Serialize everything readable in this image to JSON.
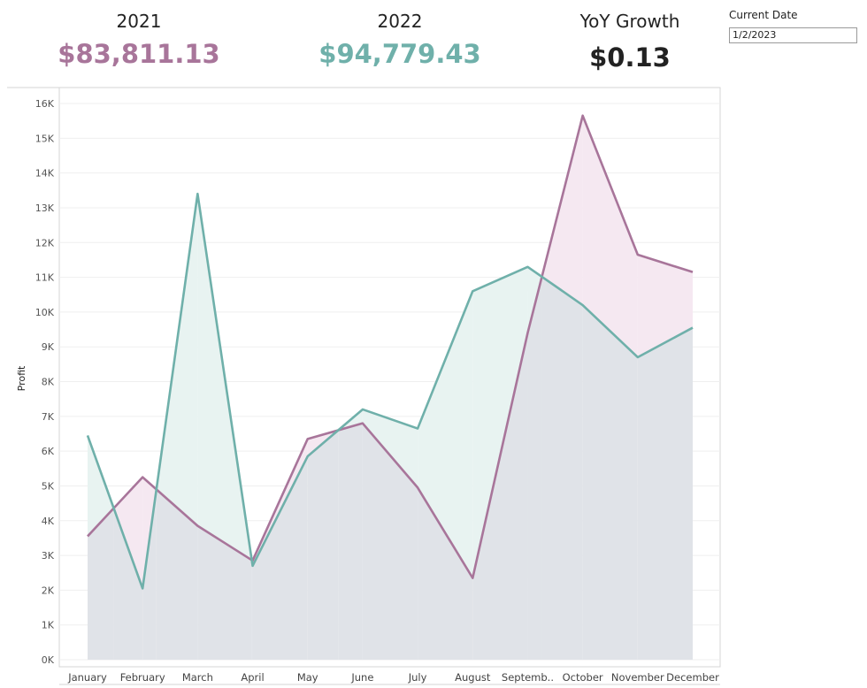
{
  "kpis": {
    "y2021": {
      "title": "2021",
      "value": "$83,811.13",
      "color": "#a8759a"
    },
    "y2022": {
      "title": "2022",
      "value": "$94,779.43",
      "color": "#6fb0aa"
    },
    "yoy": {
      "title": "YoY Growth",
      "value": "$0.13"
    }
  },
  "filter": {
    "label": "Current Date",
    "value": "1/2/2023"
  },
  "chart_data": {
    "type": "line",
    "ylabel": "Profit",
    "xlabel": "",
    "categories": [
      "January",
      "February",
      "March",
      "April",
      "May",
      "June",
      "July",
      "August",
      "Septemb..",
      "October",
      "November",
      "December"
    ],
    "ylim": [
      0,
      16000
    ],
    "yticks": [
      0,
      1000,
      2000,
      3000,
      4000,
      5000,
      6000,
      7000,
      8000,
      9000,
      10000,
      11000,
      12000,
      13000,
      14000,
      15000,
      16000
    ],
    "ytick_labels": [
      "0K",
      "1K",
      "2K",
      "3K",
      "4K",
      "5K",
      "6K",
      "7K",
      "8K",
      "9K",
      "10K",
      "11K",
      "12K",
      "13K",
      "14K",
      "15K",
      "16K"
    ],
    "grid": true,
    "series": [
      {
        "name": "2021",
        "color": "#a8759a",
        "fill": "#f5e8f1",
        "values": [
          3550,
          5250,
          3850,
          2850,
          6350,
          6800,
          4950,
          2350,
          9400,
          15650,
          11650,
          11150
        ]
      },
      {
        "name": "2022",
        "color": "#6fb0aa",
        "fill": "#e8f3f1",
        "values": [
          6450,
          2050,
          13400,
          2700,
          5850,
          7200,
          6650,
          10600,
          11300,
          10200,
          8700,
          9550
        ]
      }
    ],
    "overlap_fill": "#e0e3e8"
  }
}
